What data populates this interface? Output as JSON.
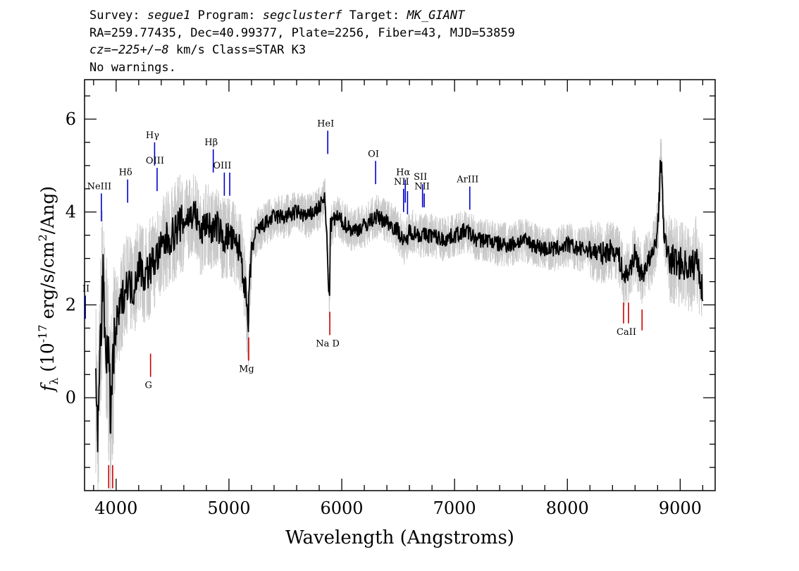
{
  "header": {
    "survey_label": "Survey:",
    "survey": "segue1",
    "program_label": "Program:",
    "program": "segclusterf",
    "target_label": "Target:",
    "target": "MK_GIANT",
    "line2": "RA=259.77435, Dec=40.99377, Plate=2256, Fiber=43, MJD=53859",
    "cz_label": "cz=",
    "cz": "−225+/−8",
    "cz_unit": "km/s Class=STAR K3",
    "warnings": "No warnings."
  },
  "chart_data": {
    "type": "line",
    "xlabel": "Wavelength (Angstroms)",
    "ylabel_main": "(10",
    "ylabel_exp": "-17",
    "ylabel_mid": " erg/s/cm",
    "ylabel_exp2": "2",
    "ylabel_end": "/Ang)",
    "ylabel_symbol": "f",
    "ylabel_sub": "λ",
    "xlim": [
      3720,
      9310
    ],
    "ylim": [
      -2.0,
      6.85
    ],
    "xticks": [
      4000,
      5000,
      6000,
      7000,
      8000,
      9000
    ],
    "xtick_labels": [
      "4000",
      "5000",
      "6000",
      "7000",
      "8000",
      "9000"
    ],
    "yticks": [
      0,
      2,
      4,
      6
    ],
    "ytick_labels": [
      "0",
      "2",
      "4",
      "6"
    ],
    "series": [
      {
        "color": "#000000",
        "x": [
          3820,
          3840,
          3860,
          3880,
          3900,
          3930,
          3950,
          3970,
          4000,
          4050,
          4100,
          4150,
          4200,
          4250,
          4300,
          4350,
          4400,
          4450,
          4500,
          4550,
          4600,
          4650,
          4700,
          4750,
          4800,
          4850,
          4900,
          4950,
          5000,
          5050,
          5100,
          5150,
          5170,
          5180,
          5200,
          5250,
          5300,
          5400,
          5500,
          5600,
          5700,
          5800,
          5850,
          5870,
          5890,
          5900,
          5950,
          6000,
          6100,
          6200,
          6300,
          6400,
          6500,
          6563,
          6600,
          6700,
          6800,
          6900,
          7000,
          7100,
          7200,
          7300,
          7400,
          7500,
          7600,
          7700,
          7800,
          7900,
          8000,
          8100,
          8200,
          8300,
          8400,
          8450,
          8500,
          8542,
          8600,
          8662,
          8700,
          8750,
          8800,
          8830,
          8860,
          8900,
          9000,
          9100,
          9150,
          9200
        ],
        "y": [
          0.3,
          -0.8,
          1.2,
          2.6,
          1.5,
          0.8,
          -0.3,
          0.6,
          1.5,
          2.1,
          2.5,
          2.3,
          2.9,
          2.6,
          2.8,
          3.0,
          3.2,
          3.4,
          3.5,
          3.7,
          3.8,
          3.9,
          4.0,
          3.5,
          3.8,
          3.6,
          3.7,
          3.4,
          3.5,
          3.3,
          3.2,
          2.2,
          1.5,
          2.2,
          3.2,
          3.6,
          3.7,
          3.9,
          3.9,
          4.0,
          3.9,
          4.1,
          4.3,
          3.3,
          2.0,
          3.7,
          3.9,
          3.8,
          3.6,
          3.7,
          3.9,
          3.8,
          3.6,
          3.3,
          3.6,
          3.5,
          3.5,
          3.4,
          3.5,
          3.6,
          3.4,
          3.4,
          3.3,
          3.3,
          3.4,
          3.3,
          3.2,
          3.2,
          3.3,
          3.2,
          3.2,
          3.1,
          3.2,
          3.1,
          2.6,
          2.7,
          3.1,
          2.6,
          2.9,
          3.0,
          3.6,
          5.2,
          3.4,
          3.0,
          2.9,
          2.8,
          3.0,
          2.3
        ]
      }
    ],
    "noise_band_color": "#c8c8c8",
    "emission_color": "#0000cc",
    "absorption_color": "#cc0000",
    "emission_lines": [
      {
        "label": "NeIII",
        "x": 3869,
        "y_top": 4.4,
        "y_bot": 3.8
      },
      {
        "label": "Hδ",
        "x": 4102,
        "y_top": 4.7,
        "y_bot": 4.2
      },
      {
        "label": "Hγ",
        "x": 4341,
        "y_top": 5.5,
        "y_bot": 5.0
      },
      {
        "label": "OIII",
        "x": 4363,
        "y_top": 4.95,
        "y_bot": 4.45
      },
      {
        "label": "Hβ",
        "x": 4861,
        "y_top": 5.35,
        "y_bot": 4.85
      },
      {
        "label": "OIII",
        "x": 4959,
        "y_top": 4.85,
        "y_bot": 4.35
      },
      {
        "label": "",
        "x": 5007,
        "y_top": 4.85,
        "y_bot": 4.35
      },
      {
        "label": "HeI",
        "x": 5876,
        "y_top": 5.75,
        "y_bot": 5.25
      },
      {
        "label": "OI",
        "x": 6300,
        "y_top": 5.1,
        "y_bot": 4.6
      },
      {
        "label": "NII",
        "x": 6548,
        "y_top": 4.5,
        "y_bot": 4.0
      },
      {
        "label": "Hα",
        "x": 6563,
        "y_top": 4.7,
        "y_bot": 4.2
      },
      {
        "label": "",
        "x": 6583,
        "y_top": 4.45,
        "y_bot": 3.95
      },
      {
        "label": "SII",
        "x": 6716,
        "y_top": 4.6,
        "y_bot": 4.1
      },
      {
        "label": "NII",
        "x": 6731,
        "y_top": 4.4,
        "y_bot": 4.1
      },
      {
        "label": "ArIII",
        "x": 7135,
        "y_top": 4.55,
        "y_bot": 4.05
      },
      {
        "label": "II",
        "x": 3727,
        "y_top": 2.2,
        "y_bot": 1.7
      }
    ],
    "absorption_lines": [
      {
        "label": "",
        "x": 3934,
        "y_top": -1.45,
        "y_bot": -1.95
      },
      {
        "label": "",
        "x": 3969,
        "y_top": -1.45,
        "y_bot": -1.95
      },
      {
        "label": "G",
        "x": 4305,
        "y_top": 0.95,
        "y_bot": 0.45
      },
      {
        "label": "Mg",
        "x": 5175,
        "y_top": 1.3,
        "y_bot": 0.8
      },
      {
        "label": "Na D",
        "x": 5894,
        "y_top": 1.85,
        "y_bot": 1.35
      },
      {
        "label": "",
        "x": 8498,
        "y_top": 2.05,
        "y_bot": 1.6
      },
      {
        "label": "CaII",
        "x": 8542,
        "y_top": 2.05,
        "y_bot": 1.6
      },
      {
        "label": "",
        "x": 8662,
        "y_top": 1.9,
        "y_bot": 1.45
      }
    ]
  }
}
